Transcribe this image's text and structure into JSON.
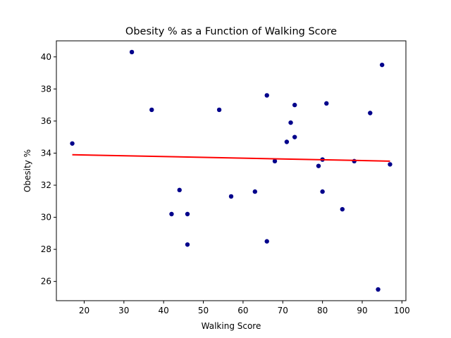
{
  "chart_data": {
    "type": "scatter",
    "title": "Obesity % as a Function of Walking Score",
    "xlabel": "Walking Score",
    "ylabel": "Obesity %",
    "xlim": [
      13,
      101
    ],
    "ylim": [
      24.8,
      41.0
    ],
    "xticks": [
      20,
      30,
      40,
      50,
      60,
      70,
      80,
      90,
      100
    ],
    "yticks": [
      26,
      28,
      30,
      32,
      34,
      36,
      38,
      40
    ],
    "grid": false,
    "legend": "none",
    "series": [
      {
        "kind": "scatter",
        "color": "#00008b",
        "points": [
          [
            17,
            34.6
          ],
          [
            32,
            40.3
          ],
          [
            37,
            36.7
          ],
          [
            42,
            30.2
          ],
          [
            44,
            31.7
          ],
          [
            46,
            30.2
          ],
          [
            46,
            28.3
          ],
          [
            54,
            36.7
          ],
          [
            57,
            31.3
          ],
          [
            63,
            31.6
          ],
          [
            66,
            37.6
          ],
          [
            66,
            28.5
          ],
          [
            68,
            33.5
          ],
          [
            71,
            34.7
          ],
          [
            72,
            35.9
          ],
          [
            73,
            37.0
          ],
          [
            73,
            35.0
          ],
          [
            79,
            33.2
          ],
          [
            80,
            33.6
          ],
          [
            80,
            31.6
          ],
          [
            81,
            37.1
          ],
          [
            85,
            30.5
          ],
          [
            88,
            33.5
          ],
          [
            92,
            36.5
          ],
          [
            94,
            25.5
          ],
          [
            95,
            39.5
          ],
          [
            97,
            33.3
          ]
        ]
      },
      {
        "kind": "line",
        "color": "#ff0000",
        "points": [
          [
            17,
            33.9
          ],
          [
            97,
            33.5
          ]
        ]
      }
    ]
  }
}
